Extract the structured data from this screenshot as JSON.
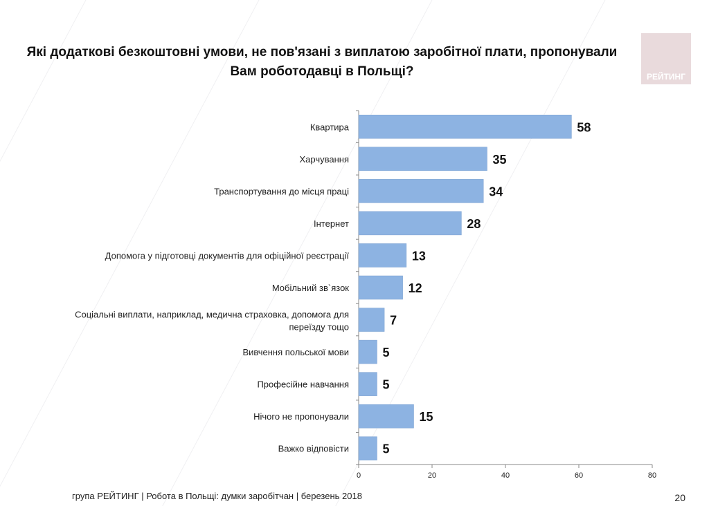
{
  "title": "Які додаткові безкоштовні умови, не пов'язані з виплатою заробітної плати, пропонували Вам роботодавці в Польщі?",
  "logo": {
    "text": "РЕЙТИНГ",
    "color": "#e9dadc"
  },
  "footer": "група РЕЙТИНГ  | Робота в Польщі: думки заробітчан  |  березень 2018",
  "page_number": "20",
  "chart_data": {
    "type": "bar",
    "orientation": "horizontal",
    "categories": [
      "Квартира",
      "Харчування",
      "Транспортування до місця праці",
      "Інтернет",
      "Допомога у підготовці документів для офіційної реєстрації",
      "Мобільний зв`язок",
      "Соціальні виплати, наприклад, медична страховка, допомога для переїзду тощо",
      "Вивчення польської мови",
      "Професійне навчання",
      "Нічого не пропонували",
      "Важко відповісти"
    ],
    "values": [
      58,
      35,
      34,
      28,
      13,
      12,
      7,
      5,
      5,
      15,
      5
    ],
    "xlim": [
      0,
      80
    ],
    "xticks": [
      "0",
      "20",
      "40",
      "60",
      "80"
    ],
    "bar_color": "#8db3e2",
    "grid": false,
    "data_labels": true
  }
}
